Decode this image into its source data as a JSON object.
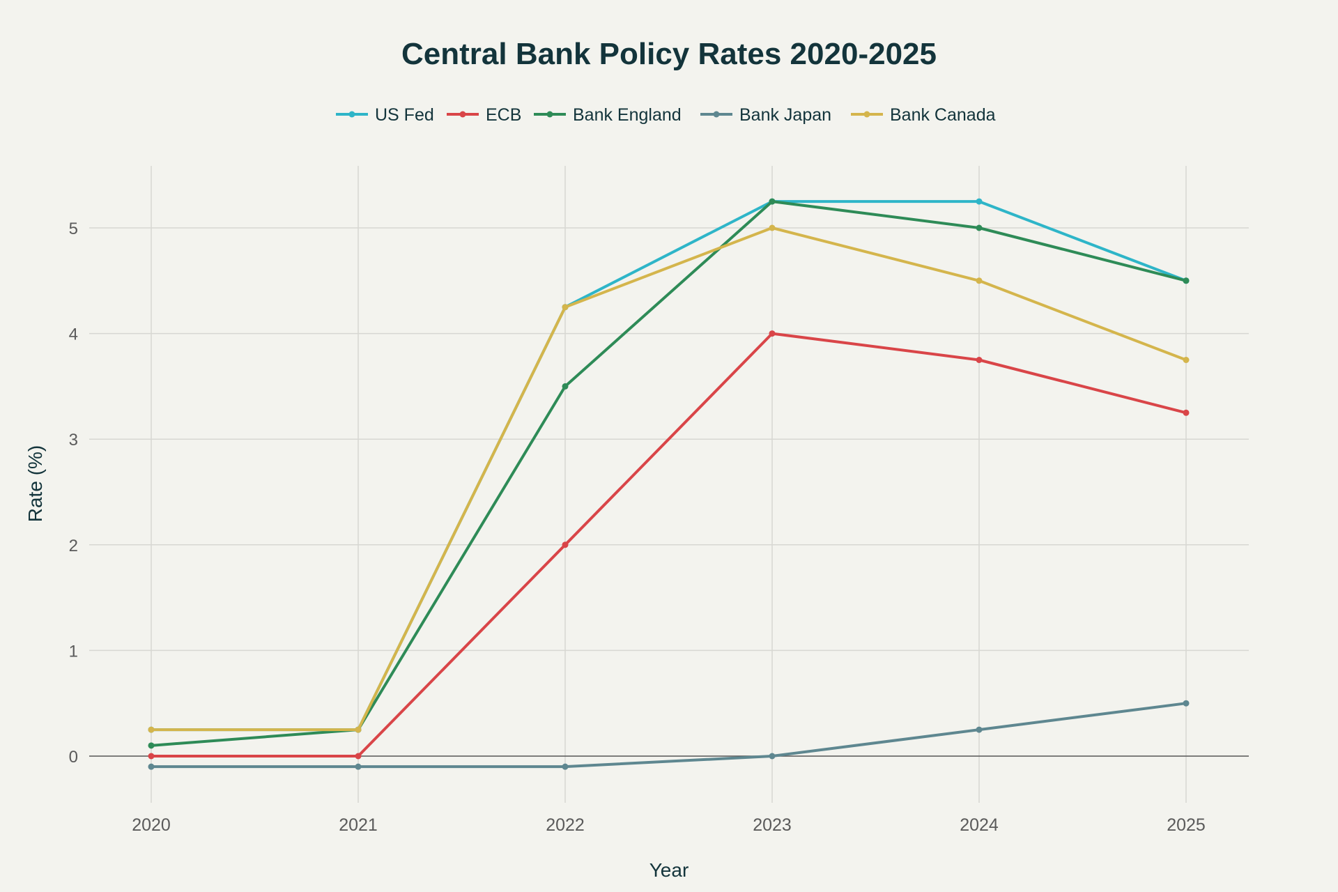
{
  "chart_data": {
    "type": "line",
    "title": "Central Bank Policy Rates 2020-2025",
    "xlabel": "Year",
    "ylabel": "Rate (%)",
    "x": [
      "2020",
      "2021",
      "2022",
      "2023",
      "2024",
      "2025"
    ],
    "y_ticks": [
      "0",
      "1",
      "2",
      "3",
      "4",
      "5"
    ],
    "ylim": [
      -0.5,
      5.58
    ],
    "grid": true,
    "legend_position": "top-center",
    "series": [
      {
        "name": "US Fed",
        "color": "#2eb5c8",
        "values": [
          0.25,
          0.25,
          4.25,
          5.25,
          5.25,
          4.5
        ]
      },
      {
        "name": "ECB",
        "color": "#d94548",
        "values": [
          0,
          0,
          2,
          4,
          3.75,
          3.25
        ]
      },
      {
        "name": "Bank England",
        "color": "#2e8b57",
        "values": [
          0.1,
          0.25,
          3.5,
          5.25,
          5,
          4.5
        ]
      },
      {
        "name": "Bank Japan",
        "color": "#5e8790",
        "values": [
          -0.1,
          -0.1,
          -0.1,
          0,
          0.25,
          0.5
        ]
      },
      {
        "name": "Bank Canada",
        "color": "#d4b54c",
        "values": [
          0.25,
          0.25,
          4.25,
          5,
          4.5,
          3.75
        ]
      }
    ]
  }
}
